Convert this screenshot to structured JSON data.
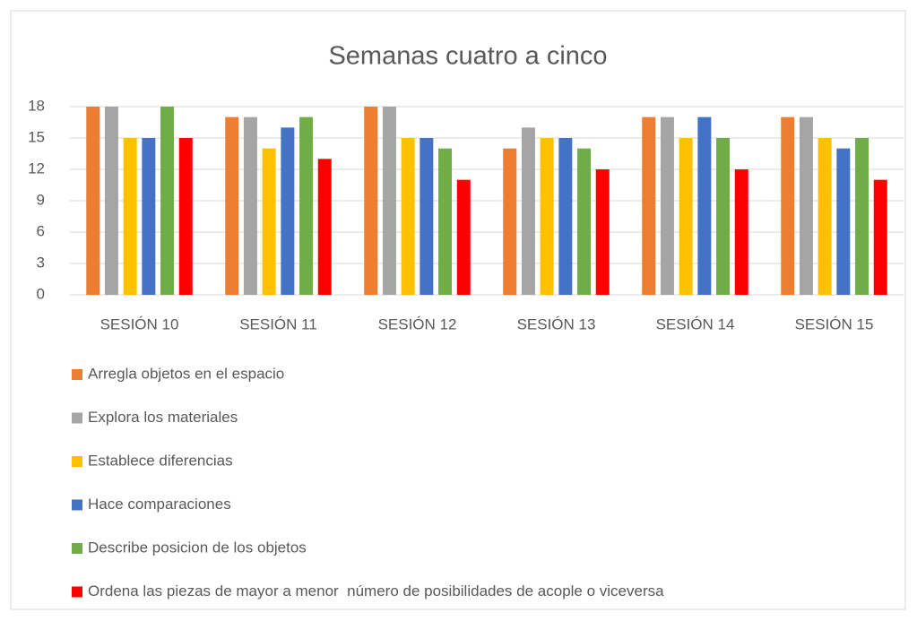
{
  "chart_data": {
    "type": "bar",
    "title": "Semanas cuatro a cinco",
    "categories": [
      "SESIÓN 10",
      "SESIÓN 11",
      "SESIÓN 12",
      "SESIÓN 13",
      "SESIÓN 14",
      "SESIÓN 15"
    ],
    "series": [
      {
        "name": "Arregla objetos en el espacio",
        "color": "#ed7d31",
        "values": [
          18,
          17,
          18,
          14,
          17,
          17
        ]
      },
      {
        "name": "Explora los materiales",
        "color": "#a5a5a5",
        "values": [
          18,
          17,
          18,
          16,
          17,
          17
        ]
      },
      {
        "name": "Establece diferencias",
        "color": "#ffc000",
        "values": [
          15,
          14,
          15,
          15,
          15,
          15
        ]
      },
      {
        "name": "Hace comparaciones",
        "color": "#4472c4",
        "values": [
          15,
          16,
          15,
          15,
          17,
          14
        ]
      },
      {
        "name": "Describe posicion de los objetos",
        "color": "#70ad47",
        "values": [
          18,
          17,
          14,
          14,
          15,
          15
        ]
      },
      {
        "name": "Ordena las piezas de mayor a menor  número de posibilidades de acople o viceversa",
        "color": "#ff0000",
        "values": [
          15,
          13,
          11,
          12,
          12,
          11
        ]
      }
    ],
    "ylim": [
      0,
      18
    ],
    "yticks": [
      0,
      3,
      6,
      9,
      12,
      15,
      18
    ],
    "grid": true,
    "legend": "bottom"
  }
}
